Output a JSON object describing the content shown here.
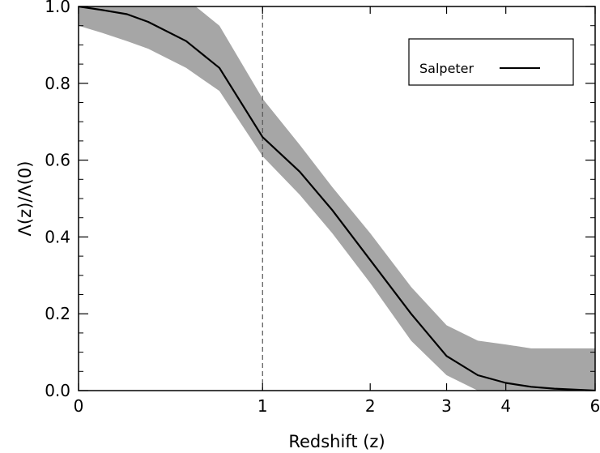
{
  "chart_data": {
    "type": "line",
    "xlabel": "Redshift (z)",
    "ylabel": "Λ(z)/Λ(0)",
    "x_scale": "log(1+z)",
    "xlim": [
      0,
      6
    ],
    "ylim": [
      0,
      1
    ],
    "x_ticks": [
      {
        "value": 0,
        "label": "0"
      },
      {
        "value": 1,
        "label": "1"
      },
      {
        "value": 2,
        "label": "2"
      },
      {
        "value": 3,
        "label": "3"
      },
      {
        "value": 4,
        "label": "4"
      },
      {
        "value": 6,
        "label": "6"
      }
    ],
    "y_ticks": [
      {
        "value": 0.0,
        "label": "0.0"
      },
      {
        "value": 0.2,
        "label": "0.2"
      },
      {
        "value": 0.4,
        "label": "0.4"
      },
      {
        "value": 0.6,
        "label": "0.6"
      },
      {
        "value": 0.8,
        "label": "0.8"
      },
      {
        "value": 1.0,
        "label": "1.0"
      }
    ],
    "reference_line": {
      "x": 1,
      "style": "dashed"
    },
    "band": {
      "x": [
        0,
        0.1,
        0.2,
        0.3,
        0.5,
        0.7,
        1.0,
        1.3,
        1.6,
        2.0,
        2.5,
        3.0,
        3.5,
        4.0,
        4.5,
        5.0,
        6.0
      ],
      "lower": [
        0.95,
        0.93,
        0.91,
        0.89,
        0.84,
        0.78,
        0.61,
        0.51,
        0.41,
        0.28,
        0.13,
        0.04,
        0.0,
        0.0,
        0.0,
        0.0,
        0.0
      ],
      "upper": [
        1.03,
        1.03,
        1.03,
        1.03,
        1.02,
        0.95,
        0.76,
        0.64,
        0.53,
        0.41,
        0.27,
        0.17,
        0.13,
        0.12,
        0.11,
        0.11,
        0.11
      ]
    },
    "series": [
      {
        "name": "Salpeter",
        "x": [
          0,
          0.1,
          0.2,
          0.3,
          0.5,
          0.7,
          1.0,
          1.3,
          1.6,
          2.0,
          2.5,
          3.0,
          3.5,
          4.0,
          4.5,
          5.0,
          6.0
        ],
        "y": [
          1.0,
          0.99,
          0.98,
          0.96,
          0.91,
          0.84,
          0.66,
          0.57,
          0.47,
          0.34,
          0.2,
          0.09,
          0.04,
          0.02,
          0.01,
          0.005,
          0.0
        ]
      }
    ],
    "legend": {
      "position": "top-right",
      "entries": [
        "Salpeter"
      ]
    },
    "grid": false
  }
}
